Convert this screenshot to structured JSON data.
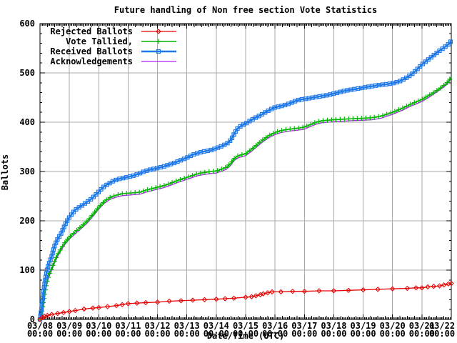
{
  "chart_data": {
    "type": "line",
    "title": "Future handling of Non free section Vote Statistics",
    "xlabel": "Date/Time (UTC)",
    "ylabel": "Ballots",
    "xlim": [
      0,
      14
    ],
    "ylim": [
      0,
      600
    ],
    "x_unit": "days since 03/08 00:00",
    "grid": true,
    "grid_color": "#a9a9a9",
    "legend_position": "top-left",
    "x_ticks": [
      {
        "date": "03/08",
        "time": "00:00"
      },
      {
        "date": "03/09",
        "time": "00:00"
      },
      {
        "date": "03/10",
        "time": "00:00"
      },
      {
        "date": "03/11",
        "time": "00:00"
      },
      {
        "date": "03/12",
        "time": "00:00"
      },
      {
        "date": "03/13",
        "time": "00:00"
      },
      {
        "date": "03/14",
        "time": "00:00"
      },
      {
        "date": "03/15",
        "time": "00:00"
      },
      {
        "date": "03/16",
        "time": "00:00"
      },
      {
        "date": "03/17",
        "time": "00:00"
      },
      {
        "date": "03/18",
        "time": "00:00"
      },
      {
        "date": "03/19",
        "time": "00:00"
      },
      {
        "date": "03/20",
        "time": "00:00"
      },
      {
        "date": "03/21",
        "time": "00:00"
      },
      {
        "date": "03/22",
        "time": "00:00"
      }
    ],
    "y_ticks": [
      0,
      100,
      200,
      300,
      400,
      500,
      600
    ],
    "series": [
      {
        "name": "Rejected Ballots",
        "color": "#e60000",
        "marker": "diamond",
        "line_width": 1.3,
        "points": [
          [
            0,
            0
          ],
          [
            0.08,
            4
          ],
          [
            0.15,
            6
          ],
          [
            0.25,
            8
          ],
          [
            0.4,
            10
          ],
          [
            0.6,
            12
          ],
          [
            0.8,
            14
          ],
          [
            1.0,
            16
          ],
          [
            1.2,
            18
          ],
          [
            1.5,
            21
          ],
          [
            1.8,
            23
          ],
          [
            2.0,
            24
          ],
          [
            2.3,
            26
          ],
          [
            2.6,
            28
          ],
          [
            2.8,
            30
          ],
          [
            3.0,
            32
          ],
          [
            3.3,
            33
          ],
          [
            3.6,
            34
          ],
          [
            4.0,
            35
          ],
          [
            4.4,
            37
          ],
          [
            4.8,
            38
          ],
          [
            5.2,
            39
          ],
          [
            5.6,
            40
          ],
          [
            6.0,
            41
          ],
          [
            6.3,
            42
          ],
          [
            6.6,
            43
          ],
          [
            7.0,
            45
          ],
          [
            7.2,
            46
          ],
          [
            7.35,
            48
          ],
          [
            7.5,
            50
          ],
          [
            7.6,
            52
          ],
          [
            7.75,
            54
          ],
          [
            7.9,
            56
          ],
          [
            8.2,
            56
          ],
          [
            8.6,
            57
          ],
          [
            9.0,
            57
          ],
          [
            9.5,
            58
          ],
          [
            10.0,
            58
          ],
          [
            10.5,
            59
          ],
          [
            11.0,
            60
          ],
          [
            11.5,
            61
          ],
          [
            12.0,
            62
          ],
          [
            12.5,
            63
          ],
          [
            12.8,
            64
          ],
          [
            13.0,
            64
          ],
          [
            13.2,
            66
          ],
          [
            13.4,
            67
          ],
          [
            13.6,
            68
          ],
          [
            13.75,
            70
          ],
          [
            13.9,
            72
          ],
          [
            14.0,
            73
          ]
        ]
      },
      {
        "name": "Vote Tallied,",
        "color": "#00b400",
        "marker": "plus",
        "line_width": 1.5,
        "points": [
          [
            0,
            0
          ],
          [
            0.05,
            12
          ],
          [
            0.1,
            30
          ],
          [
            0.15,
            50
          ],
          [
            0.2,
            66
          ],
          [
            0.25,
            79
          ],
          [
            0.3,
            90
          ],
          [
            0.4,
            104
          ],
          [
            0.5,
            119
          ],
          [
            0.6,
            132
          ],
          [
            0.7,
            142
          ],
          [
            0.8,
            152
          ],
          [
            0.9,
            160
          ],
          [
            1.0,
            167
          ],
          [
            1.15,
            175
          ],
          [
            1.3,
            183
          ],
          [
            1.45,
            191
          ],
          [
            1.6,
            199
          ],
          [
            1.8,
            213
          ],
          [
            2.0,
            228
          ],
          [
            2.2,
            240
          ],
          [
            2.4,
            248
          ],
          [
            2.6,
            252
          ],
          [
            2.8,
            255
          ],
          [
            3.0,
            256
          ],
          [
            3.2,
            257
          ],
          [
            3.4,
            258
          ],
          [
            3.6,
            262
          ],
          [
            3.8,
            265
          ],
          [
            4.0,
            268
          ],
          [
            4.2,
            271
          ],
          [
            4.4,
            275
          ],
          [
            4.6,
            280
          ],
          [
            4.8,
            284
          ],
          [
            5.0,
            288
          ],
          [
            5.2,
            292
          ],
          [
            5.4,
            296
          ],
          [
            5.6,
            298
          ],
          [
            5.8,
            300
          ],
          [
            6.0,
            301
          ],
          [
            6.2,
            305
          ],
          [
            6.35,
            309
          ],
          [
            6.5,
            317
          ],
          [
            6.6,
            326
          ],
          [
            6.75,
            332
          ],
          [
            7.0,
            336
          ],
          [
            7.2,
            345
          ],
          [
            7.4,
            355
          ],
          [
            7.6,
            365
          ],
          [
            7.8,
            373
          ],
          [
            8.0,
            379
          ],
          [
            8.2,
            383
          ],
          [
            8.5,
            386
          ],
          [
            8.8,
            388
          ],
          [
            9.0,
            390
          ],
          [
            9.2,
            395
          ],
          [
            9.4,
            400
          ],
          [
            9.6,
            403
          ],
          [
            9.8,
            404
          ],
          [
            10.0,
            405
          ],
          [
            10.3,
            406
          ],
          [
            10.6,
            407
          ],
          [
            11.0,
            408
          ],
          [
            11.3,
            409
          ],
          [
            11.6,
            412
          ],
          [
            11.8,
            416
          ],
          [
            12.0,
            420
          ],
          [
            12.2,
            425
          ],
          [
            12.4,
            430
          ],
          [
            12.6,
            436
          ],
          [
            12.8,
            441
          ],
          [
            13.0,
            446
          ],
          [
            13.2,
            453
          ],
          [
            13.4,
            460
          ],
          [
            13.6,
            468
          ],
          [
            13.8,
            477
          ],
          [
            13.9,
            483
          ],
          [
            14.0,
            492
          ]
        ]
      },
      {
        "name": "Received Ballots",
        "color": "#1e78e8",
        "marker": "square",
        "line_width": 2.5,
        "points": [
          [
            0,
            0
          ],
          [
            0.05,
            20
          ],
          [
            0.1,
            45
          ],
          [
            0.15,
            70
          ],
          [
            0.2,
            88
          ],
          [
            0.25,
            103
          ],
          [
            0.3,
            112
          ],
          [
            0.35,
            120
          ],
          [
            0.4,
            128
          ],
          [
            0.5,
            150
          ],
          [
            0.6,
            163
          ],
          [
            0.7,
            172
          ],
          [
            0.8,
            185
          ],
          [
            0.9,
            198
          ],
          [
            1.0,
            207
          ],
          [
            1.1,
            215
          ],
          [
            1.2,
            222
          ],
          [
            1.35,
            228
          ],
          [
            1.5,
            234
          ],
          [
            1.7,
            242
          ],
          [
            1.85,
            250
          ],
          [
            2.0,
            259
          ],
          [
            2.15,
            268
          ],
          [
            2.3,
            274
          ],
          [
            2.5,
            281
          ],
          [
            2.7,
            285
          ],
          [
            2.85,
            287
          ],
          [
            3.0,
            289
          ],
          [
            3.15,
            291
          ],
          [
            3.3,
            294
          ],
          [
            3.5,
            299
          ],
          [
            3.7,
            303
          ],
          [
            3.85,
            305
          ],
          [
            4.0,
            307
          ],
          [
            4.2,
            310
          ],
          [
            4.4,
            314
          ],
          [
            4.6,
            318
          ],
          [
            4.8,
            323
          ],
          [
            5.0,
            328
          ],
          [
            5.2,
            334
          ],
          [
            5.4,
            338
          ],
          [
            5.6,
            341
          ],
          [
            5.8,
            343
          ],
          [
            6.0,
            347
          ],
          [
            6.2,
            352
          ],
          [
            6.35,
            356
          ],
          [
            6.5,
            364
          ],
          [
            6.6,
            375
          ],
          [
            6.7,
            386
          ],
          [
            6.85,
            393
          ],
          [
            7.0,
            397
          ],
          [
            7.15,
            403
          ],
          [
            7.3,
            408
          ],
          [
            7.5,
            414
          ],
          [
            7.7,
            421
          ],
          [
            7.85,
            426
          ],
          [
            8.0,
            430
          ],
          [
            8.15,
            432
          ],
          [
            8.3,
            434
          ],
          [
            8.5,
            438
          ],
          [
            8.7,
            443
          ],
          [
            8.85,
            446
          ],
          [
            9.0,
            447
          ],
          [
            9.2,
            449
          ],
          [
            9.4,
            451
          ],
          [
            9.6,
            453
          ],
          [
            9.8,
            455
          ],
          [
            10.0,
            458
          ],
          [
            10.2,
            461
          ],
          [
            10.4,
            464
          ],
          [
            10.6,
            466
          ],
          [
            10.8,
            468
          ],
          [
            11.0,
            470
          ],
          [
            11.2,
            472
          ],
          [
            11.5,
            475
          ],
          [
            11.8,
            477
          ],
          [
            12.0,
            479
          ],
          [
            12.2,
            482
          ],
          [
            12.35,
            486
          ],
          [
            12.5,
            491
          ],
          [
            12.65,
            497
          ],
          [
            12.8,
            505
          ],
          [
            13.0,
            517
          ],
          [
            13.15,
            524
          ],
          [
            13.3,
            531
          ],
          [
            13.45,
            538
          ],
          [
            13.6,
            545
          ],
          [
            13.75,
            551
          ],
          [
            13.9,
            558
          ],
          [
            14.0,
            565
          ]
        ]
      },
      {
        "name": "Acknowledgements",
        "color": "#b020f0",
        "marker": "none",
        "line_width": 1.3,
        "points": [
          [
            0,
            0
          ],
          [
            0.05,
            8
          ],
          [
            0.1,
            26
          ],
          [
            0.15,
            46
          ],
          [
            0.2,
            62
          ],
          [
            0.25,
            75
          ],
          [
            0.3,
            86
          ],
          [
            0.4,
            100
          ],
          [
            0.5,
            115
          ],
          [
            0.6,
            128
          ],
          [
            0.7,
            138
          ],
          [
            0.8,
            148
          ],
          [
            0.9,
            156
          ],
          [
            1.0,
            163
          ],
          [
            1.15,
            171
          ],
          [
            1.3,
            179
          ],
          [
            1.45,
            187
          ],
          [
            1.6,
            195
          ],
          [
            1.8,
            209
          ],
          [
            2.0,
            224
          ],
          [
            2.2,
            236
          ],
          [
            2.4,
            244
          ],
          [
            2.6,
            248
          ],
          [
            2.8,
            251
          ],
          [
            3.0,
            252
          ],
          [
            3.2,
            253
          ],
          [
            3.4,
            254
          ],
          [
            3.6,
            258
          ],
          [
            3.8,
            261
          ],
          [
            4.0,
            264
          ],
          [
            4.2,
            267
          ],
          [
            4.4,
            271
          ],
          [
            4.6,
            276
          ],
          [
            4.8,
            280
          ],
          [
            5.0,
            284
          ],
          [
            5.2,
            288
          ],
          [
            5.4,
            292
          ],
          [
            5.6,
            294
          ],
          [
            5.8,
            296
          ],
          [
            6.0,
            297
          ],
          [
            6.2,
            301
          ],
          [
            6.35,
            305
          ],
          [
            6.5,
            313
          ],
          [
            6.6,
            322
          ],
          [
            6.75,
            328
          ],
          [
            7.0,
            332
          ],
          [
            7.2,
            341
          ],
          [
            7.4,
            351
          ],
          [
            7.6,
            361
          ],
          [
            7.8,
            369
          ],
          [
            8.0,
            375
          ],
          [
            8.2,
            379
          ],
          [
            8.5,
            382
          ],
          [
            8.8,
            384
          ],
          [
            9.0,
            386
          ],
          [
            9.2,
            391
          ],
          [
            9.4,
            396
          ],
          [
            9.6,
            399
          ],
          [
            9.8,
            400
          ],
          [
            10.0,
            401
          ],
          [
            10.3,
            402
          ],
          [
            10.6,
            403
          ],
          [
            11.0,
            404
          ],
          [
            11.3,
            405
          ],
          [
            11.6,
            408
          ],
          [
            11.8,
            412
          ],
          [
            12.0,
            416
          ],
          [
            12.2,
            421
          ],
          [
            12.4,
            426
          ],
          [
            12.6,
            432
          ],
          [
            12.8,
            437
          ],
          [
            13.0,
            442
          ],
          [
            13.2,
            449
          ],
          [
            13.4,
            457
          ],
          [
            13.6,
            465
          ],
          [
            13.8,
            474
          ],
          [
            13.9,
            480
          ],
          [
            14.0,
            489
          ]
        ]
      }
    ]
  }
}
